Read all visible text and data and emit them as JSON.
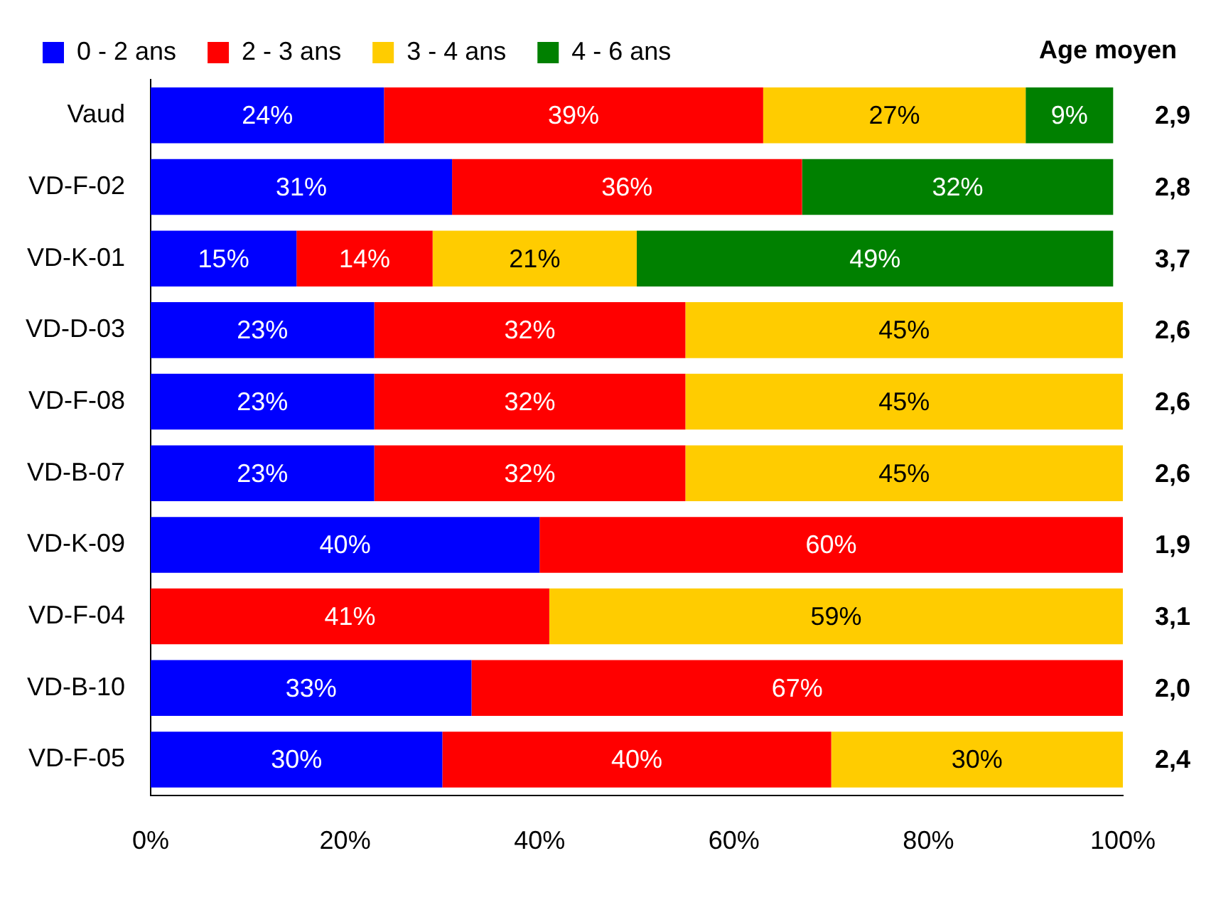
{
  "chart_data": {
    "type": "bar",
    "orientation": "horizontal",
    "stacked": true,
    "legend": "top",
    "grid": false,
    "categories": [
      "Vaud",
      "VD-F-02",
      "VD-K-01",
      "VD-D-03",
      "VD-F-08",
      "VD-B-07",
      "VD-K-09",
      "VD-F-04",
      "VD-B-10",
      "VD-F-05"
    ],
    "series": [
      {
        "name": "0 - 2 ans",
        "color": "#0000ff",
        "values": [
          24,
          31,
          15,
          23,
          23,
          23,
          40,
          null,
          33,
          30
        ],
        "value_labels": [
          "24%",
          "31%",
          "15%",
          "23%",
          "23%",
          "23%",
          "40%",
          null,
          "33%",
          "30%"
        ]
      },
      {
        "name": "2 - 3 ans",
        "color": "#ff0000",
        "values": [
          39,
          36,
          14,
          32,
          32,
          32,
          60,
          41,
          67,
          40
        ],
        "value_labels": [
          "39%",
          "36%",
          "14%",
          "32%",
          "32%",
          "32%",
          "60%",
          "41%",
          "67%",
          "40%"
        ]
      },
      {
        "name": "3 - 4 ans",
        "color": "#ffcc00",
        "values": [
          27,
          null,
          21,
          45,
          45,
          45,
          null,
          59,
          null,
          30
        ],
        "value_labels": [
          "27%",
          null,
          "21%",
          "45%",
          "45%",
          "45%",
          null,
          "59%",
          null,
          "30%"
        ]
      },
      {
        "name": "4 - 6 ans",
        "color": "#008000",
        "values": [
          9,
          32,
          49,
          null,
          null,
          null,
          null,
          null,
          null,
          null
        ],
        "value_labels": [
          "9%",
          "32%",
          "49%",
          null,
          null,
          null,
          null,
          null,
          null,
          null
        ]
      }
    ],
    "xlim": [
      0,
      100
    ],
    "xticks": [
      {
        "value": 0,
        "label": "0%"
      },
      {
        "value": 20,
        "label": "20%"
      },
      {
        "value": 40,
        "label": "40%"
      },
      {
        "value": 60,
        "label": "60%"
      },
      {
        "value": 80,
        "label": "80%"
      },
      {
        "value": 100,
        "label": "100%"
      }
    ],
    "annotations": [
      "Age moyen",
      "2,9",
      "2,8",
      "3,7",
      "2,6",
      "2,6",
      "2,6",
      "1,9",
      "3,1",
      "2,0",
      "2,4"
    ]
  }
}
